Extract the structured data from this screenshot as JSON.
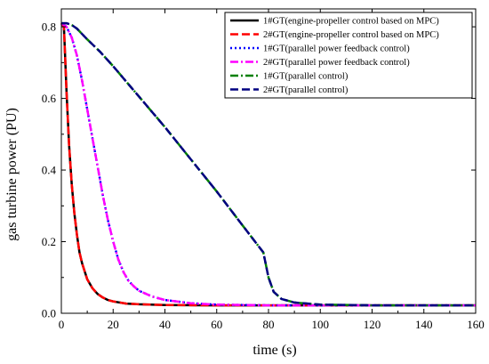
{
  "chart_data": {
    "type": "line",
    "xlabel": "time (s)",
    "ylabel": "gas turbine power (PU)",
    "xlim": [
      0,
      160
    ],
    "ylim": [
      0,
      0.85
    ],
    "xticks": [
      0,
      20,
      40,
      60,
      80,
      100,
      120,
      140,
      160
    ],
    "xtick_labels": [
      "0",
      "20",
      "40",
      "60",
      "80",
      "100",
      "120",
      "140",
      "160"
    ],
    "yticks": [
      0.0,
      0.2,
      0.4,
      0.6,
      0.8
    ],
    "ytick_labels": [
      "0.0",
      "0.2",
      "0.4",
      "0.6",
      "0.8"
    ],
    "grid": false,
    "legend_position": "top-right",
    "series": [
      {
        "name": "1#GT(engine-propeller control based on MPC)",
        "color": "#000000",
        "dash": "solid",
        "x": [
          0,
          1,
          2,
          3,
          4,
          5,
          6,
          7,
          8,
          10,
          12,
          14,
          16,
          18,
          20,
          25,
          30,
          40,
          60,
          80,
          100,
          120,
          140,
          160
        ],
        "y": [
          0.81,
          0.8,
          0.62,
          0.47,
          0.36,
          0.28,
          0.22,
          0.17,
          0.14,
          0.095,
          0.07,
          0.054,
          0.044,
          0.037,
          0.033,
          0.027,
          0.025,
          0.023,
          0.022,
          0.022,
          0.022,
          0.022,
          0.022,
          0.022
        ]
      },
      {
        "name": "2#GT(engine-propeller control based on MPC)",
        "color": "#ff0000",
        "dash": "dash",
        "x": [
          0,
          1,
          2,
          3,
          4,
          5,
          6,
          7,
          8,
          10,
          12,
          14,
          16,
          18,
          20,
          25,
          30,
          40,
          60,
          80,
          100,
          120,
          140,
          160
        ],
        "y": [
          0.81,
          0.8,
          0.62,
          0.47,
          0.36,
          0.28,
          0.22,
          0.17,
          0.14,
          0.095,
          0.07,
          0.054,
          0.044,
          0.037,
          0.033,
          0.027,
          0.025,
          0.023,
          0.022,
          0.022,
          0.022,
          0.022,
          0.022,
          0.022
        ]
      },
      {
        "name": "1#GT(parallel power feedback control)",
        "color": "#0000ff",
        "dash": "dot",
        "x": [
          0,
          2,
          4,
          6,
          8,
          10,
          12,
          14,
          16,
          18,
          20,
          22,
          24,
          26,
          28,
          30,
          35,
          40,
          50,
          60,
          80,
          100,
          120,
          140,
          160
        ],
        "y": [
          0.81,
          0.8,
          0.77,
          0.72,
          0.65,
          0.57,
          0.49,
          0.41,
          0.33,
          0.26,
          0.2,
          0.15,
          0.115,
          0.09,
          0.075,
          0.063,
          0.047,
          0.037,
          0.028,
          0.024,
          0.022,
          0.022,
          0.022,
          0.022,
          0.022
        ]
      },
      {
        "name": "2#GT(parallel power feedback control)",
        "color": "#ff00ff",
        "dash": "dashdot",
        "x": [
          0,
          2,
          4,
          6,
          8,
          10,
          12,
          14,
          16,
          18,
          20,
          22,
          24,
          26,
          28,
          30,
          35,
          40,
          50,
          60,
          80,
          100,
          120,
          140,
          160
        ],
        "y": [
          0.81,
          0.8,
          0.77,
          0.72,
          0.65,
          0.57,
          0.49,
          0.41,
          0.33,
          0.26,
          0.2,
          0.15,
          0.115,
          0.09,
          0.075,
          0.063,
          0.047,
          0.037,
          0.028,
          0.024,
          0.022,
          0.022,
          0.022,
          0.022,
          0.022
        ]
      },
      {
        "name": "1#GT(parallel control)",
        "color": "#008000",
        "dash": "dashdot",
        "x": [
          0,
          2,
          4,
          6,
          8,
          10,
          15,
          20,
          30,
          40,
          50,
          60,
          70,
          78,
          80,
          82,
          85,
          90,
          100,
          120,
          140,
          160
        ],
        "y": [
          0.81,
          0.81,
          0.805,
          0.795,
          0.78,
          0.765,
          0.73,
          0.69,
          0.605,
          0.52,
          0.43,
          0.34,
          0.245,
          0.17,
          0.1,
          0.06,
          0.04,
          0.03,
          0.024,
          0.022,
          0.022,
          0.022
        ]
      },
      {
        "name": "2#GT(parallel control)",
        "color": "#000080",
        "dash": "dash",
        "x": [
          0,
          2,
          4,
          6,
          8,
          10,
          15,
          20,
          30,
          40,
          50,
          60,
          70,
          78,
          80,
          82,
          85,
          90,
          100,
          120,
          140,
          160
        ],
        "y": [
          0.81,
          0.81,
          0.805,
          0.795,
          0.78,
          0.765,
          0.73,
          0.69,
          0.605,
          0.52,
          0.43,
          0.34,
          0.245,
          0.17,
          0.1,
          0.06,
          0.04,
          0.03,
          0.024,
          0.022,
          0.022,
          0.022
        ]
      }
    ]
  }
}
